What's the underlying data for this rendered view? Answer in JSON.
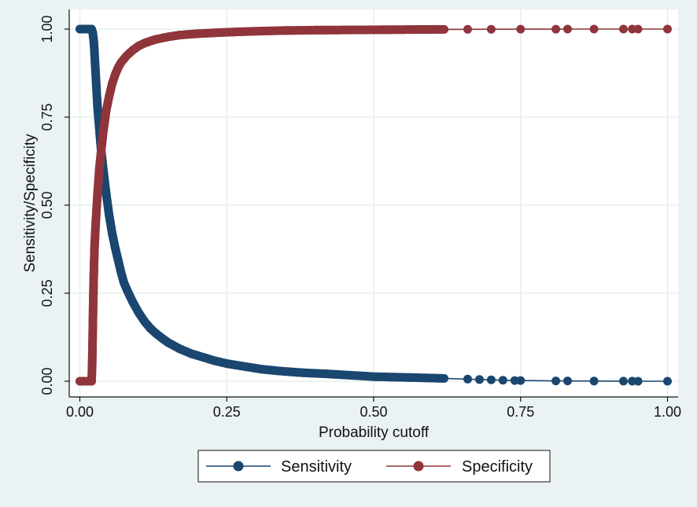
{
  "chart_data": {
    "type": "line",
    "xlabel": "Probability cutoff",
    "ylabel": "Sensitivity/Specificity",
    "xlim": [
      0,
      1
    ],
    "ylim": [
      0,
      1
    ],
    "xticks": [
      0,
      0.25,
      0.5,
      0.75,
      1
    ],
    "yticks": [
      0,
      0.25,
      0.5,
      0.75,
      1
    ],
    "xtick_labels": [
      "0.00",
      "0.25",
      "0.50",
      "0.75",
      "1.00"
    ],
    "ytick_labels": [
      "0.00",
      "0.25",
      "0.50",
      "0.75",
      "1.00"
    ],
    "grid": true,
    "legend_position": "bottom",
    "background_color": "#eaf2f3",
    "plot_background_color": "#ffffff",
    "grid_color": "#e6eeee",
    "series": [
      {
        "name": "Sensitivity",
        "color": "#1a476f",
        "marker": "circle",
        "x": [
          0.0,
          0.02,
          0.022,
          0.024,
          0.026,
          0.028,
          0.03,
          0.033,
          0.036,
          0.04,
          0.045,
          0.05,
          0.055,
          0.06,
          0.065,
          0.07,
          0.075,
          0.08,
          0.09,
          0.1,
          0.11,
          0.12,
          0.13,
          0.14,
          0.15,
          0.17,
          0.19,
          0.21,
          0.23,
          0.25,
          0.28,
          0.31,
          0.34,
          0.38,
          0.42,
          0.46,
          0.5,
          0.55,
          0.6,
          0.62,
          0.66,
          0.68,
          0.7,
          0.72,
          0.74,
          0.75,
          0.81,
          0.83,
          0.875,
          0.925,
          0.94,
          0.95,
          1.0
        ],
        "y": [
          1.0,
          1.0,
          0.99,
          0.96,
          0.9,
          0.84,
          0.78,
          0.72,
          0.66,
          0.6,
          0.53,
          0.47,
          0.42,
          0.38,
          0.345,
          0.31,
          0.28,
          0.26,
          0.225,
          0.195,
          0.17,
          0.15,
          0.135,
          0.122,
          0.11,
          0.092,
          0.078,
          0.068,
          0.058,
          0.05,
          0.042,
          0.034,
          0.029,
          0.024,
          0.021,
          0.017,
          0.013,
          0.011,
          0.009,
          0.008,
          0.006,
          0.005,
          0.004,
          0.003,
          0.002,
          0.002,
          0.001,
          0.001,
          0.0005,
          0.0003,
          0.0002,
          0.0001,
          0.0
        ]
      },
      {
        "name": "Specificity",
        "color": "#90353b",
        "marker": "circle",
        "x": [
          0.0,
          0.02,
          0.021,
          0.022,
          0.023,
          0.024,
          0.025,
          0.027,
          0.03,
          0.033,
          0.036,
          0.04,
          0.045,
          0.05,
          0.055,
          0.06,
          0.065,
          0.07,
          0.075,
          0.08,
          0.09,
          0.1,
          0.11,
          0.12,
          0.13,
          0.15,
          0.17,
          0.2,
          0.25,
          0.3,
          0.35,
          0.4,
          0.5,
          0.6,
          0.62,
          0.66,
          0.7,
          0.75,
          0.81,
          0.83,
          0.875,
          0.925,
          0.94,
          0.95,
          1.0
        ],
        "y": [
          0.0,
          0.0,
          0.05,
          0.15,
          0.25,
          0.32,
          0.38,
          0.45,
          0.53,
          0.6,
          0.65,
          0.71,
          0.77,
          0.81,
          0.845,
          0.87,
          0.89,
          0.905,
          0.915,
          0.925,
          0.94,
          0.952,
          0.96,
          0.966,
          0.971,
          0.978,
          0.983,
          0.987,
          0.991,
          0.994,
          0.996,
          0.997,
          0.998,
          0.999,
          0.999,
          0.9993,
          0.9995,
          0.9997,
          0.9998,
          0.9999,
          0.99995,
          1.0,
          1.0,
          1.0,
          1.0
        ]
      }
    ]
  }
}
